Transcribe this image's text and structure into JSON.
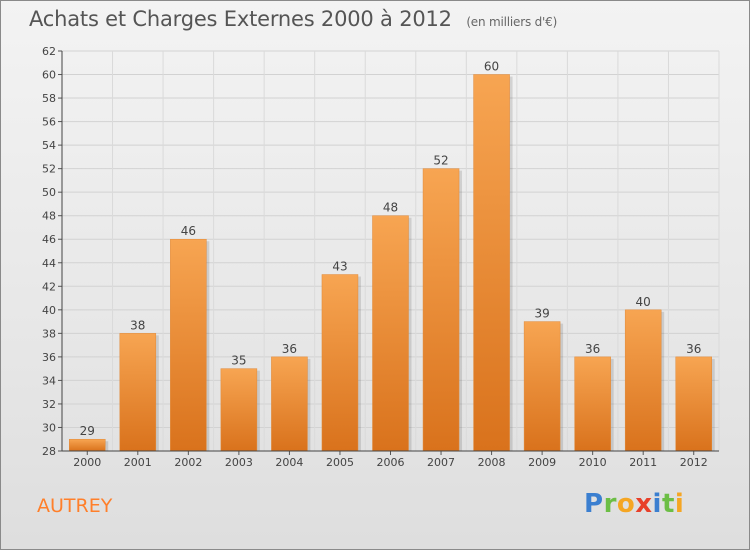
{
  "header": {
    "title": "Achats et Charges Externes 2000 à 2012",
    "subtitle": "(en milliers d'€)"
  },
  "footer": {
    "place": "AUTREY",
    "logo": "Proxiti"
  },
  "colors": {
    "bar_light": "#f7a552",
    "bar_dark": "#d9721c",
    "place_text": "#ff7f2a",
    "axis": "#444444"
  },
  "chart_data": {
    "type": "bar",
    "categories": [
      "2000",
      "2001",
      "2002",
      "2003",
      "2004",
      "2005",
      "2006",
      "2007",
      "2008",
      "2009",
      "2010",
      "2011",
      "2012"
    ],
    "values": [
      29,
      38,
      46,
      35,
      36,
      43,
      48,
      52,
      60,
      39,
      36,
      40,
      36
    ],
    "data_labels": [
      "29",
      "38",
      "46",
      "35",
      "36",
      "43",
      "48",
      "52",
      "60",
      "39",
      "36",
      "40",
      "36"
    ],
    "ylim": [
      28,
      62
    ],
    "yticks": [
      28,
      30,
      32,
      34,
      36,
      38,
      40,
      42,
      44,
      46,
      48,
      50,
      52,
      54,
      56,
      58,
      60,
      62
    ],
    "grid": true
  }
}
